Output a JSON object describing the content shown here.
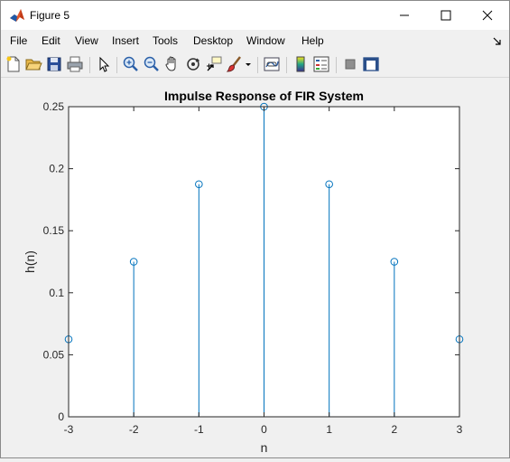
{
  "window": {
    "title": "Figure 5",
    "minimize_icon": "minimize-icon",
    "maximize_icon": "maximize-icon",
    "close_icon": "close-icon"
  },
  "menu": {
    "items": [
      {
        "label": "File"
      },
      {
        "label": "Edit"
      },
      {
        "label": "View"
      },
      {
        "label": "Insert"
      },
      {
        "label": "Tools"
      },
      {
        "label": "Desktop"
      },
      {
        "label": "Window"
      },
      {
        "label": "Help"
      }
    ]
  },
  "toolbar": {
    "buttons": [
      {
        "icon": "new-figure-icon"
      },
      {
        "icon": "open-file-icon"
      },
      {
        "icon": "save-icon"
      },
      {
        "icon": "print-icon"
      },
      {
        "icon": "pointer-icon"
      },
      {
        "icon": "zoom-in-icon"
      },
      {
        "icon": "zoom-out-icon"
      },
      {
        "icon": "pan-hand-icon"
      },
      {
        "icon": "rotate-3d-icon"
      },
      {
        "icon": "data-cursor-icon"
      },
      {
        "icon": "brush-icon"
      },
      {
        "icon": "link-plot-icon"
      },
      {
        "icon": "colorbar-icon"
      },
      {
        "icon": "legend-icon"
      },
      {
        "icon": "hide-plot-tools-icon"
      },
      {
        "icon": "show-plot-tools-icon"
      }
    ]
  },
  "colors": {
    "stem": "#0072BD",
    "axes_bg": "#ffffff",
    "figure_bg": "#f0f0f0"
  },
  "chart_data": {
    "type": "stem",
    "title": "Impulse Response of FIR System",
    "xlabel": "n",
    "ylabel": "h(n)",
    "x": [
      -3,
      -2,
      -1,
      0,
      1,
      2,
      3
    ],
    "values": [
      0.0625,
      0.125,
      0.1875,
      0.25,
      0.1875,
      0.125,
      0.0625
    ],
    "xlim": [
      -3,
      3
    ],
    "ylim": [
      0,
      0.25
    ],
    "xticks": [
      -3,
      -2,
      -1,
      0,
      1,
      2,
      3
    ],
    "xtick_labels": [
      "-3",
      "-2",
      "-1",
      "0",
      "1",
      "2",
      "3"
    ],
    "yticks": [
      0,
      0.05,
      0.1,
      0.15,
      0.2,
      0.25
    ],
    "ytick_labels": [
      "0",
      "0.05",
      "0.1",
      "0.15",
      "0.2",
      "0.25"
    ],
    "grid": false,
    "legend": "none"
  }
}
